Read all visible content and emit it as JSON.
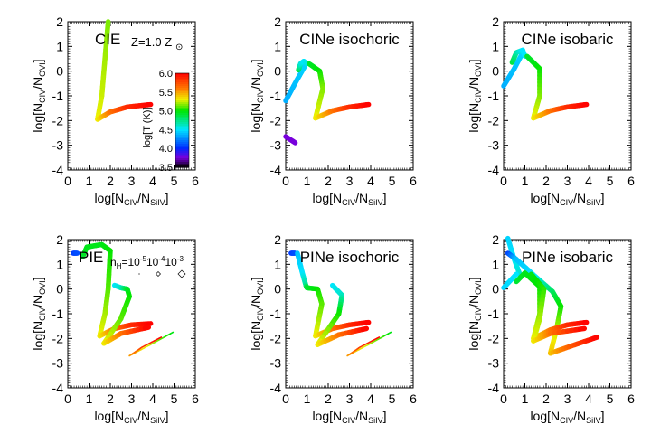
{
  "chart_data": {
    "type": "line",
    "colorbar": {
      "label": "log[T (K)]",
      "range": [
        3.5,
        6.0
      ],
      "ticks": [
        "6.0",
        "5.5",
        "5.0",
        "4.5",
        "4.0",
        "3.5"
      ],
      "colormap": "rainbow"
    },
    "metallicity_label": "Z=1.0 Z",
    "sun_symbol": "⊙",
    "density_legend": {
      "prefix": "n",
      "sub": "H",
      "eq": "=10",
      "exps": [
        "-5",
        "-4",
        "-3"
      ],
      "mids": [
        "10",
        "10"
      ],
      "symbols": [
        "dot",
        "small-diamond",
        "large-diamond"
      ]
    },
    "xaxis": {
      "label_main": "log[N",
      "sub1": "CIV",
      "slash": "/N",
      "sub2": "SiIV",
      "close": "]",
      "range": [
        0,
        6
      ],
      "ticks": [
        "0",
        "1",
        "2",
        "3",
        "4",
        "5",
        "6"
      ]
    },
    "yaxis": {
      "label_main": "log[N",
      "sub1": "CIV",
      "slash": "/N",
      "sub2": "OVI",
      "close": "]",
      "range": [
        -4,
        2
      ],
      "ticks": [
        "2",
        "1",
        "0",
        "-1",
        "-2",
        "-3",
        "-4"
      ]
    },
    "panels": [
      {
        "title": "CIE",
        "curves": [
          {
            "style": "thick",
            "points": [
              [
                1.9,
                2.0,
                5.15
              ],
              [
                1.75,
                0.5,
                5.2
              ],
              [
                1.6,
                -1.0,
                5.25
              ],
              [
                1.4,
                -1.95,
                5.3
              ],
              [
                2.0,
                -1.65,
                5.6
              ],
              [
                2.8,
                -1.45,
                5.85
              ],
              [
                3.9,
                -1.35,
                6.0
              ]
            ]
          }
        ]
      },
      {
        "title": "CINe isochoric",
        "curves": [
          {
            "style": "thick",
            "points": [
              [
                0.0,
                -2.65,
                3.75
              ],
              [
                0.45,
                -2.9,
                3.75
              ]
            ]
          },
          {
            "style": "thick",
            "points": [
              [
                0.0,
                -1.2,
                4.35
              ],
              [
                0.5,
                -0.4,
                4.4
              ],
              [
                0.9,
                0.2,
                4.45
              ]
            ]
          },
          {
            "style": "thick",
            "points": [
              [
                0.6,
                0.05,
                4.9
              ],
              [
                0.7,
                0.3,
                4.6
              ],
              [
                0.85,
                0.4,
                4.5
              ],
              [
                1.0,
                0.3,
                4.55
              ]
            ]
          },
          {
            "style": "thick",
            "points": [
              [
                1.1,
                0.3,
                4.9
              ],
              [
                1.6,
                0.0,
                5.0
              ],
              [
                1.75,
                -0.7,
                5.15
              ],
              [
                1.4,
                -1.9,
                5.3
              ],
              [
                2.2,
                -1.6,
                5.6
              ],
              [
                3.0,
                -1.45,
                5.85
              ],
              [
                3.9,
                -1.35,
                6.0
              ]
            ]
          }
        ]
      },
      {
        "title": "CINe isobaric",
        "curves": [
          {
            "style": "thick",
            "points": [
              [
                0.0,
                -0.6,
                4.35
              ],
              [
                0.5,
                0.1,
                4.4
              ],
              [
                0.9,
                0.75,
                4.45
              ]
            ]
          },
          {
            "style": "thick",
            "points": [
              [
                0.4,
                0.35,
                4.9
              ],
              [
                0.6,
                0.75,
                4.7
              ],
              [
                0.9,
                0.85,
                4.5
              ],
              [
                1.0,
                0.6,
                4.5
              ]
            ]
          },
          {
            "style": "thick",
            "points": [
              [
                1.1,
                0.6,
                4.9
              ],
              [
                1.7,
                0.1,
                5.0
              ],
              [
                1.7,
                -1.0,
                5.15
              ],
              [
                1.4,
                -1.9,
                5.3
              ],
              [
                2.2,
                -1.6,
                5.6
              ],
              [
                3.0,
                -1.45,
                5.85
              ],
              [
                3.9,
                -1.35,
                6.0
              ]
            ]
          }
        ]
      },
      {
        "title": "PIE",
        "curves": [
          {
            "style": "thick",
            "points": [
              [
                0.25,
                1.45,
                4.05
              ],
              [
                0.45,
                1.45,
                4.1
              ]
            ]
          },
          {
            "style": "thick",
            "points": [
              [
                0.7,
                1.3,
                4.9
              ],
              [
                0.9,
                1.7,
                4.95
              ],
              [
                1.6,
                1.8,
                4.95
              ],
              [
                2.0,
                1.55,
                5.0
              ],
              [
                1.9,
                0.0,
                5.1
              ],
              [
                1.75,
                -1.0,
                5.2
              ],
              [
                1.5,
                -1.9,
                5.3
              ],
              [
                2.2,
                -1.6,
                5.6
              ],
              [
                3.0,
                -1.45,
                5.85
              ],
              [
                3.9,
                -1.4,
                6.0
              ]
            ]
          },
          {
            "style": "thick",
            "points": [
              [
                2.2,
                0.15,
                4.5
              ],
              [
                2.5,
                0.05,
                4.6
              ],
              [
                2.8,
                0.0,
                4.9
              ],
              [
                2.9,
                -0.3,
                5.0
              ],
              [
                2.5,
                -1.2,
                5.1
              ],
              [
                1.7,
                -2.2,
                5.3
              ],
              [
                2.5,
                -1.8,
                5.6
              ],
              [
                3.8,
                -1.55,
                6.0
              ]
            ]
          },
          {
            "style": "thin",
            "points": [
              [
                4.95,
                -1.75,
                4.95
              ],
              [
                4.0,
                -2.2,
                5.2
              ],
              [
                2.9,
                -2.7,
                5.5
              ],
              [
                3.5,
                -2.35,
                5.8
              ],
              [
                4.4,
                -1.95,
                6.0
              ]
            ]
          }
        ]
      },
      {
        "title": "PINe isochoric",
        "curves": [
          {
            "style": "thick",
            "points": [
              [
                0.25,
                1.45,
                4.05
              ],
              [
                0.45,
                1.45,
                4.1
              ]
            ]
          },
          {
            "style": "thick",
            "points": [
              [
                0.55,
                1.45,
                4.4
              ],
              [
                0.8,
                0.6,
                4.5
              ],
              [
                0.95,
                0.15,
                4.7
              ],
              [
                1.0,
                0.05,
                4.9
              ],
              [
                1.5,
                0.0,
                5.0
              ],
              [
                1.7,
                -0.6,
                5.1
              ],
              [
                1.4,
                -1.9,
                5.3
              ],
              [
                2.2,
                -1.6,
                5.6
              ],
              [
                3.0,
                -1.45,
                5.85
              ],
              [
                3.9,
                -1.35,
                6.0
              ]
            ]
          },
          {
            "style": "thick",
            "points": [
              [
                2.2,
                0.15,
                4.5
              ],
              [
                2.65,
                -0.25,
                4.6
              ],
              [
                2.5,
                -1.0,
                5.0
              ],
              [
                1.5,
                -2.25,
                5.3
              ],
              [
                2.5,
                -1.85,
                5.6
              ],
              [
                3.8,
                -1.6,
                6.0
              ]
            ]
          },
          {
            "style": "thin",
            "points": [
              [
                4.95,
                -1.75,
                4.95
              ],
              [
                4.0,
                -2.2,
                5.2
              ],
              [
                2.9,
                -2.7,
                5.5
              ],
              [
                3.5,
                -2.35,
                5.8
              ],
              [
                4.4,
                -1.95,
                6.0
              ]
            ]
          }
        ]
      },
      {
        "title": "PINe isobaric",
        "curves": [
          {
            "style": "thick",
            "points": [
              [
                0.2,
                2.05,
                4.45
              ],
              [
                0.5,
                1.2,
                4.5
              ],
              [
                0.8,
                0.5,
                4.6
              ]
            ]
          },
          {
            "style": "thick",
            "points": [
              [
                0.0,
                0.05,
                4.45
              ],
              [
                0.6,
                0.6,
                4.5
              ]
            ]
          },
          {
            "style": "thick",
            "points": [
              [
                0.2,
                1.45,
                4.05
              ],
              [
                0.6,
                1.2,
                4.4
              ],
              [
                1.5,
                0.5,
                4.5
              ],
              [
                2.3,
                -0.1,
                4.8
              ],
              [
                2.7,
                -0.7,
                5.0
              ],
              [
                2.5,
                -1.6,
                5.2
              ],
              [
                2.2,
                -2.6,
                5.4
              ],
              [
                3.2,
                -2.3,
                5.7
              ],
              [
                4.4,
                -1.95,
                6.0
              ]
            ]
          },
          {
            "style": "thick",
            "points": [
              [
                0.6,
                0.3,
                4.9
              ],
              [
                1.0,
                0.65,
                4.95
              ],
              [
                1.7,
                0.1,
                5.0
              ],
              [
                1.7,
                -1.0,
                5.15
              ],
              [
                1.4,
                -2.0,
                5.3
              ],
              [
                2.2,
                -1.65,
                5.6
              ],
              [
                3.0,
                -1.45,
                5.85
              ],
              [
                3.9,
                -1.35,
                6.0
              ]
            ]
          },
          {
            "style": "thick",
            "points": [
              [
                1.3,
                0.6,
                4.95
              ],
              [
                1.9,
                0.0,
                5.05
              ],
              [
                1.7,
                -1.2,
                5.2
              ],
              [
                1.4,
                -2.1,
                5.3
              ],
              [
                2.2,
                -1.8,
                5.6
              ],
              [
                3.8,
                -1.6,
                6.0
              ]
            ]
          }
        ]
      }
    ]
  }
}
